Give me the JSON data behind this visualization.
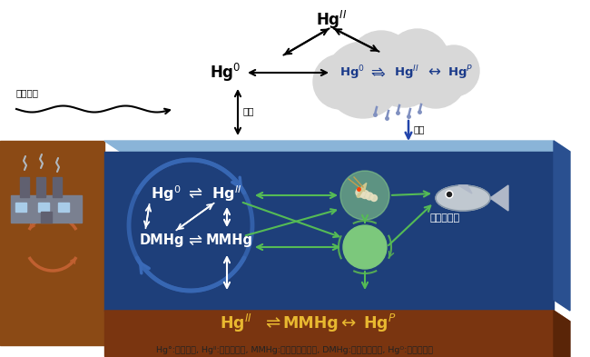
{
  "bg_color": "#ffffff",
  "ocean_top_color": "#8ab4d8",
  "ocean_deep_color": "#1e3f7a",
  "ocean_right_color": "#2a5090",
  "sediment_color": "#7a3510",
  "sediment_right_color": "#5a2508",
  "land_color": "#8b4a15",
  "cloud_color": "#d8d8d8",
  "arrow_black": "#000000",
  "arrow_white": "#ffffff",
  "arrow_blue": "#3a6ab8",
  "arrow_green": "#55bb55",
  "arrow_navy": "#1a3a8a",
  "text_white": "#ffffff",
  "text_dark_blue": "#1a3a8a",
  "text_gold": "#e8b830",
  "text_black": "#222222",
  "caption": "Hg°:元素水銀, Hgᴵᴵ:酸化態水銀, MMHg:モノメチル水銀, DMHg:ジメチル水銀, Hgᴼ:粒子態水銀",
  "label_transport": "越境輸送",
  "label_diffusion": "拡散",
  "label_deposition": "沈着",
  "label_foodweb": "食物網蓄穎",
  "figw": 6.5,
  "figh": 3.93,
  "dpi": 100
}
